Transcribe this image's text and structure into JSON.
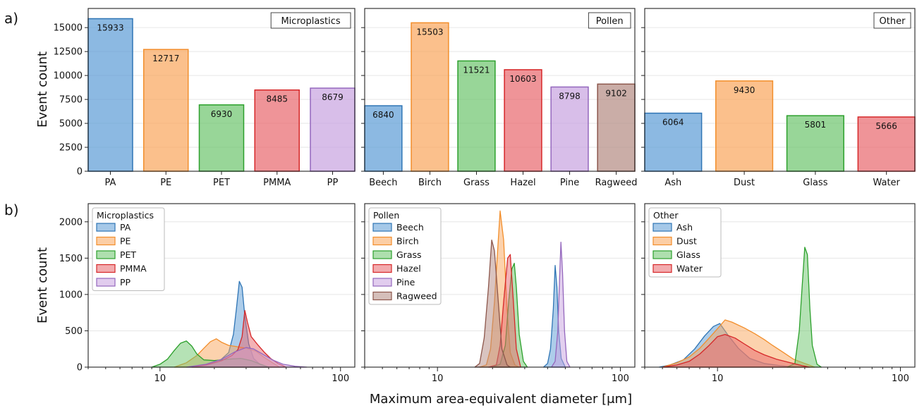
{
  "figure": {
    "panel_letters": [
      "a)",
      "b)"
    ],
    "xlabel": "Maximum area-equivalent diameter [μm]"
  },
  "colors": {
    "blue": "#5b9bd5",
    "blue_edge": "#2f75b5",
    "orange": "#f9a55b",
    "orange_edge": "#f28e2b",
    "green": "#6cc56c",
    "green_edge": "#2ca02c",
    "red": "#e8666c",
    "red_edge": "#d62728",
    "purple": "#c8a2e0",
    "purple_edge": "#9467bd",
    "brown": "#b38a82",
    "brown_edge": "#8c564b"
  },
  "chart_data": [
    {
      "type": "bar",
      "group": "Microplastics",
      "ylabel": "Event count",
      "ylim": [
        0,
        17000
      ],
      "yticks": [
        0,
        2500,
        5000,
        7500,
        10000,
        12500,
        15000
      ],
      "categories": [
        "PA",
        "PE",
        "PET",
        "PMMA",
        "PP"
      ],
      "values": [
        15933,
        12717,
        6930,
        8485,
        8679
      ],
      "colors": [
        "blue",
        "orange",
        "green",
        "red",
        "purple"
      ],
      "grid": true
    },
    {
      "type": "bar",
      "group": "Pollen",
      "ylim": [
        0,
        17000
      ],
      "categories": [
        "Beech",
        "Birch",
        "Grass",
        "Hazel",
        "Pine",
        "Ragweed"
      ],
      "values": [
        6840,
        15503,
        11521,
        10603,
        8798,
        9102
      ],
      "colors": [
        "blue",
        "orange",
        "green",
        "red",
        "purple",
        "brown"
      ],
      "grid": true
    },
    {
      "type": "bar",
      "group": "Other",
      "ylim": [
        0,
        17000
      ],
      "categories": [
        "Ash",
        "Dust",
        "Glass",
        "Water"
      ],
      "values": [
        6064,
        9430,
        5801,
        5666
      ],
      "colors": [
        "blue",
        "orange",
        "green",
        "red"
      ],
      "grid": true
    },
    {
      "type": "area",
      "group": "Microplastics",
      "ylabel": "Event count",
      "xscale": "log",
      "xlim": [
        4,
        120
      ],
      "ylim": [
        0,
        2250
      ],
      "yticks": [
        0,
        500,
        1000,
        1500,
        2000
      ],
      "xticks": [
        10,
        100
      ],
      "legend": "top-left",
      "legend_title": "Microplastics",
      "series": [
        {
          "name": "PA",
          "color": "blue",
          "points": [
            [
              15,
              0
            ],
            [
              18,
              20
            ],
            [
              21,
              70
            ],
            [
              24,
              200
            ],
            [
              25.5,
              450
            ],
            [
              26.5,
              800
            ],
            [
              27.5,
              1180
            ],
            [
              28.5,
              1100
            ],
            [
              29.5,
              700
            ],
            [
              31,
              320
            ],
            [
              33,
              120
            ],
            [
              36,
              30
            ],
            [
              40,
              0
            ]
          ]
        },
        {
          "name": "PE",
          "color": "orange",
          "points": [
            [
              12,
              0
            ],
            [
              14,
              60
            ],
            [
              16,
              160
            ],
            [
              17.5,
              260
            ],
            [
              19,
              350
            ],
            [
              20.5,
              390
            ],
            [
              22,
              340
            ],
            [
              24,
              300
            ],
            [
              27,
              280
            ],
            [
              30,
              260
            ],
            [
              34,
              220
            ],
            [
              38,
              130
            ],
            [
              42,
              60
            ],
            [
              46,
              0
            ]
          ]
        },
        {
          "name": "PET",
          "color": "green",
          "points": [
            [
              9,
              0
            ],
            [
              10,
              40
            ],
            [
              11,
              110
            ],
            [
              12,
              230
            ],
            [
              13,
              330
            ],
            [
              14,
              360
            ],
            [
              15,
              290
            ],
            [
              16,
              180
            ],
            [
              17.5,
              100
            ],
            [
              20,
              90
            ],
            [
              24,
              110
            ],
            [
              28,
              120
            ],
            [
              32,
              90
            ],
            [
              36,
              40
            ],
            [
              40,
              0
            ]
          ]
        },
        {
          "name": "PMMA",
          "color": "red",
          "points": [
            [
              15,
              0
            ],
            [
              18,
              30
            ],
            [
              22,
              90
            ],
            [
              25,
              160
            ],
            [
              27,
              240
            ],
            [
              28.5,
              420
            ],
            [
              29.5,
              780
            ],
            [
              30.5,
              620
            ],
            [
              32,
              420
            ],
            [
              35,
              300
            ],
            [
              38,
              200
            ],
            [
              41,
              120
            ],
            [
              45,
              50
            ],
            [
              50,
              0
            ]
          ]
        },
        {
          "name": "PP",
          "color": "purple",
          "points": [
            [
              14,
              0
            ],
            [
              18,
              40
            ],
            [
              22,
              110
            ],
            [
              26,
              210
            ],
            [
              30,
              270
            ],
            [
              33,
              250
            ],
            [
              37,
              180
            ],
            [
              42,
              100
            ],
            [
              48,
              40
            ],
            [
              56,
              12
            ],
            [
              65,
              0
            ]
          ]
        }
      ]
    },
    {
      "type": "area",
      "group": "Pollen",
      "xscale": "log",
      "xlim": [
        4,
        120
      ],
      "ylim": [
        0,
        2250
      ],
      "xticks": [
        10,
        100
      ],
      "legend": "top-left",
      "legend_title": "Pollen",
      "series": [
        {
          "name": "Beech",
          "color": "blue",
          "points": [
            [
              38,
              0
            ],
            [
              40,
              50
            ],
            [
              41.5,
              250
            ],
            [
              43,
              800
            ],
            [
              44,
              1400
            ],
            [
              45,
              1100
            ],
            [
              46,
              500
            ],
            [
              47.5,
              120
            ],
            [
              50,
              0
            ]
          ]
        },
        {
          "name": "Birch",
          "color": "orange",
          "points": [
            [
              17,
              0
            ],
            [
              18.5,
              30
            ],
            [
              19.5,
              250
            ],
            [
              20.5,
              900
            ],
            [
              21.5,
              1750
            ],
            [
              22,
              2150
            ],
            [
              23,
              1750
            ],
            [
              24,
              800
            ],
            [
              25,
              200
            ],
            [
              26.5,
              30
            ],
            [
              28,
              0
            ]
          ]
        },
        {
          "name": "Grass",
          "color": "green",
          "points": [
            [
              20,
              0
            ],
            [
              22,
              40
            ],
            [
              23.5,
              300
            ],
            [
              24.5,
              900
            ],
            [
              25.5,
              1350
            ],
            [
              26.3,
              1430
            ],
            [
              27,
              1100
            ],
            [
              28,
              450
            ],
            [
              29.5,
              80
            ],
            [
              31,
              0
            ]
          ]
        },
        {
          "name": "Hazel",
          "color": "red",
          "points": [
            [
              19,
              0
            ],
            [
              21,
              30
            ],
            [
              22,
              300
            ],
            [
              23,
              900
            ],
            [
              24.2,
              1500
            ],
            [
              25,
              1550
            ],
            [
              26,
              900
            ],
            [
              27,
              250
            ],
            [
              28.5,
              0
            ]
          ]
        },
        {
          "name": "Pine",
          "color": "purple",
          "points": [
            [
              42,
              0
            ],
            [
              44,
              80
            ],
            [
              45.5,
              500
            ],
            [
              46.5,
              1200
            ],
            [
              47.3,
              1720
            ],
            [
              48.3,
              1300
            ],
            [
              49.5,
              500
            ],
            [
              51,
              80
            ],
            [
              53,
              0
            ]
          ]
        },
        {
          "name": "Ragweed",
          "color": "brown",
          "points": [
            [
              16,
              0
            ],
            [
              17,
              50
            ],
            [
              18,
              400
            ],
            [
              19,
              1100
            ],
            [
              19.8,
              1750
            ],
            [
              20.5,
              1600
            ],
            [
              21.5,
              900
            ],
            [
              22.5,
              250
            ],
            [
              24,
              30
            ],
            [
              25,
              0
            ]
          ]
        }
      ]
    },
    {
      "type": "area",
      "group": "Other",
      "xscale": "log",
      "xlim": [
        4,
        120
      ],
      "ylim": [
        0,
        2250
      ],
      "xticks": [
        10,
        100
      ],
      "legend": "top-left",
      "legend_title": "Other",
      "series": [
        {
          "name": "Ash",
          "color": "blue",
          "points": [
            [
              4.8,
              0
            ],
            [
              5.5,
              30
            ],
            [
              6.5,
              100
            ],
            [
              7.5,
              250
            ],
            [
              8.5,
              430
            ],
            [
              9.5,
              560
            ],
            [
              10.3,
              600
            ],
            [
              11.5,
              430
            ],
            [
              13,
              260
            ],
            [
              15,
              120
            ],
            [
              18,
              50
            ],
            [
              22,
              20
            ],
            [
              27,
              0
            ]
          ]
        },
        {
          "name": "Dust",
          "color": "orange",
          "points": [
            [
              5,
              0
            ],
            [
              6,
              60
            ],
            [
              7,
              140
            ],
            [
              8,
              260
            ],
            [
              9,
              400
            ],
            [
              10,
              530
            ],
            [
              11,
              650
            ],
            [
              12,
              620
            ],
            [
              14,
              540
            ],
            [
              16,
              460
            ],
            [
              18,
              380
            ],
            [
              20,
              300
            ],
            [
              23,
              200
            ],
            [
              26,
              110
            ],
            [
              30,
              50
            ],
            [
              34,
              0
            ]
          ]
        },
        {
          "name": "Glass",
          "color": "green",
          "points": [
            [
              24,
              0
            ],
            [
              26.5,
              50
            ],
            [
              28,
              500
            ],
            [
              29,
              1100
            ],
            [
              30,
              1650
            ],
            [
              31,
              1550
            ],
            [
              32,
              800
            ],
            [
              33,
              300
            ],
            [
              35,
              40
            ],
            [
              37,
              0
            ]
          ]
        },
        {
          "name": "Water",
          "color": "red",
          "points": [
            [
              5,
              0
            ],
            [
              6,
              30
            ],
            [
              7,
              80
            ],
            [
              8,
              180
            ],
            [
              9,
              300
            ],
            [
              10,
              420
            ],
            [
              11,
              450
            ],
            [
              12.5,
              400
            ],
            [
              14,
              320
            ],
            [
              16,
              230
            ],
            [
              18,
              170
            ],
            [
              21,
              110
            ],
            [
              25,
              60
            ],
            [
              29,
              20
            ],
            [
              32,
              0
            ]
          ]
        }
      ]
    }
  ]
}
